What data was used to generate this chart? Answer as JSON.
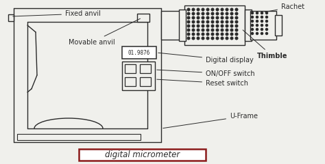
{
  "bg_color": "#f0f0ec",
  "line_color": "#2a2a2a",
  "title_text": "digital micrometer",
  "title_box_color": "#8b1a1a",
  "labels": {
    "fixed_anvil": "Fixed anvil",
    "movable_anvil": "Movable anvil",
    "rachet": "Rachet",
    "thimble": "Thimble",
    "digital_display": "Digital display",
    "onoff": "ON/OFF switch",
    "reset": "Reset switch",
    "uframe": "U-Frame"
  },
  "display_text": "01.9876",
  "font_size_labels": 7.0,
  "font_size_title": 8.5
}
